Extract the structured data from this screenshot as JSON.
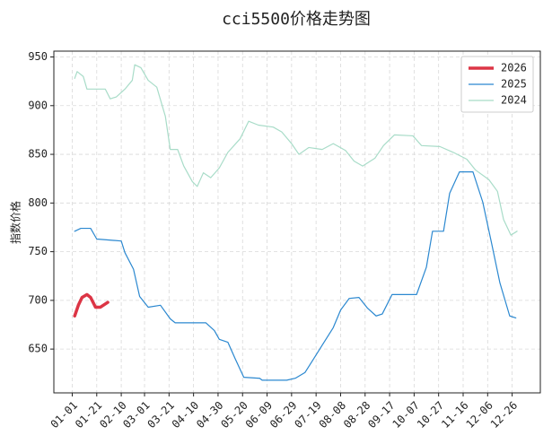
{
  "chart_data": {
    "type": "line",
    "title": "cci5500价格走势图",
    "y_label": "指数价格",
    "xlim": [
      -15,
      382
    ],
    "ylim": [
      605,
      956
    ],
    "xticks": [
      {
        "value": 0,
        "label": "01-01"
      },
      {
        "value": 20,
        "label": "01-21"
      },
      {
        "value": 40,
        "label": "02-10"
      },
      {
        "value": 59,
        "label": "03-01"
      },
      {
        "value": 79,
        "label": "03-21"
      },
      {
        "value": 99,
        "label": "04-10"
      },
      {
        "value": 119,
        "label": "04-30"
      },
      {
        "value": 139,
        "label": "05-20"
      },
      {
        "value": 159,
        "label": "06-09"
      },
      {
        "value": 179,
        "label": "06-29"
      },
      {
        "value": 199,
        "label": "07-19"
      },
      {
        "value": 219,
        "label": "08-08"
      },
      {
        "value": 239,
        "label": "08-28"
      },
      {
        "value": 259,
        "label": "09-17"
      },
      {
        "value": 279,
        "label": "10-07"
      },
      {
        "value": 299,
        "label": "10-27"
      },
      {
        "value": 319,
        "label": "11-16"
      },
      {
        "value": 339,
        "label": "12-06"
      },
      {
        "value": 359,
        "label": "12-26"
      }
    ],
    "yticks": [
      650,
      700,
      750,
      800,
      850,
      900,
      950
    ],
    "grid": true,
    "legend": "upper right",
    "series": [
      {
        "name": "2026",
        "color": "#dc3545",
        "width": 3.5,
        "x": [
          2,
          5,
          8,
          12,
          15,
          19,
          23,
          29
        ],
        "values": [
          684,
          695,
          703,
          706,
          703,
          693,
          693,
          698
        ]
      },
      {
        "name": "2025",
        "color": "#2b88d0",
        "width": 1.2,
        "x": [
          2,
          7,
          15,
          20,
          40,
          43,
          50,
          55,
          62,
          72,
          80,
          84,
          109,
          116,
          120,
          127,
          133,
          140,
          153,
          155,
          175,
          182,
          190,
          197,
          204,
          213,
          219,
          226,
          234,
          241,
          248,
          253,
          261,
          270,
          281,
          289,
          294,
          303,
          308,
          316,
          327,
          335,
          342,
          349,
          357,
          362
        ],
        "values": [
          771,
          774,
          774,
          763,
          761,
          749,
          732,
          704,
          693,
          695,
          681,
          677,
          677,
          669,
          660,
          657,
          640,
          621,
          620,
          618,
          618,
          620,
          626,
          640,
          654,
          672,
          690,
          702,
          703,
          692,
          684,
          686,
          706,
          706,
          706,
          734,
          771,
          771,
          810,
          832,
          832,
          801,
          760,
          718,
          684,
          682
        ]
      },
      {
        "name": "2024",
        "color": "#a8dcc8",
        "width": 1.2,
        "x": [
          2,
          4,
          9,
          12,
          27,
          31,
          36,
          43,
          49,
          51,
          56,
          62,
          69,
          76,
          80,
          86,
          91,
          98,
          102,
          107,
          113,
          120,
          127,
          137,
          144,
          152,
          164,
          171,
          179,
          185,
          193,
          204,
          213,
          223,
          230,
          237,
          247,
          254,
          263,
          278,
          285,
          300,
          311,
          322,
          329,
          340,
          347,
          352,
          358,
          363
        ],
        "values": [
          928,
          935,
          930,
          917,
          917,
          907,
          909,
          917,
          926,
          942,
          939,
          926,
          919,
          889,
          855,
          855,
          838,
          822,
          817,
          831,
          826,
          836,
          852,
          866,
          884,
          880,
          878,
          873,
          861,
          850,
          857,
          855,
          861,
          854,
          843,
          838,
          846,
          859,
          870,
          869,
          859,
          858,
          852,
          845,
          834,
          824,
          812,
          783,
          767,
          771
        ]
      }
    ]
  }
}
